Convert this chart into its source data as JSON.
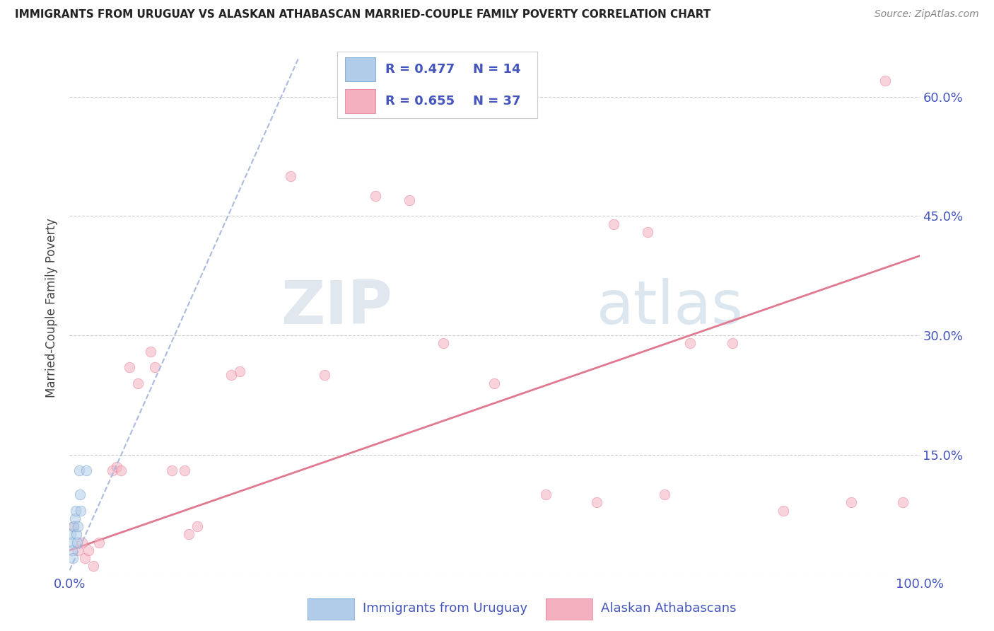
{
  "title": "IMMIGRANTS FROM URUGUAY VS ALASKAN ATHABASCAN MARRIED-COUPLE FAMILY POVERTY CORRELATION CHART",
  "source": "Source: ZipAtlas.com",
  "ylabel": "Married-Couple Family Poverty",
  "xlim": [
    0,
    1.0
  ],
  "ylim": [
    0,
    0.67
  ],
  "yticks": [
    0.0,
    0.15,
    0.3,
    0.45,
    0.6
  ],
  "ytick_labels_right": [
    "",
    "15.0%",
    "30.0%",
    "45.0%",
    "60.0%"
  ],
  "xtick_left_label": "0.0%",
  "xtick_right_label": "100.0%",
  "watermark_zip": "ZIP",
  "watermark_atlas": "atlas",
  "legend_r1": "R = 0.477",
  "legend_n1": "N = 14",
  "legend_r2": "R = 0.655",
  "legend_n2": "N = 37",
  "blue_scatter_x": [
    0.001,
    0.002,
    0.003,
    0.004,
    0.005,
    0.006,
    0.007,
    0.008,
    0.009,
    0.01,
    0.011,
    0.012,
    0.013,
    0.02
  ],
  "blue_scatter_y": [
    0.05,
    0.04,
    0.03,
    0.02,
    0.06,
    0.07,
    0.08,
    0.05,
    0.04,
    0.06,
    0.13,
    0.1,
    0.08,
    0.13
  ],
  "blue_trend_x": [
    0.0,
    0.27
  ],
  "blue_trend_y": [
    0.005,
    0.65
  ],
  "pink_scatter_x": [
    0.005,
    0.01,
    0.015,
    0.018,
    0.022,
    0.028,
    0.035,
    0.05,
    0.055,
    0.06,
    0.07,
    0.08,
    0.095,
    0.1,
    0.12,
    0.135,
    0.14,
    0.15,
    0.19,
    0.2,
    0.26,
    0.3,
    0.36,
    0.4,
    0.44,
    0.5,
    0.56,
    0.62,
    0.64,
    0.68,
    0.7,
    0.73,
    0.78,
    0.84,
    0.92,
    0.96,
    0.98
  ],
  "pink_scatter_y": [
    0.06,
    0.03,
    0.04,
    0.02,
    0.03,
    0.01,
    0.04,
    0.13,
    0.135,
    0.13,
    0.26,
    0.24,
    0.28,
    0.26,
    0.13,
    0.13,
    0.05,
    0.06,
    0.25,
    0.255,
    0.5,
    0.25,
    0.475,
    0.47,
    0.29,
    0.24,
    0.1,
    0.09,
    0.44,
    0.43,
    0.1,
    0.29,
    0.29,
    0.08,
    0.09,
    0.62,
    0.09
  ],
  "pink_trend_x": [
    0.0,
    1.0
  ],
  "pink_trend_y": [
    0.03,
    0.4
  ],
  "blue_color": "#b0cce8",
  "blue_edge": "#6699cc",
  "pink_color": "#f5b0c0",
  "pink_edge": "#e07890",
  "blue_line_color": "#aabbdd",
  "pink_line_color": "#e07890",
  "grid_color": "#cccccc",
  "title_color": "#222222",
  "axis_color": "#4455bb",
  "background_color": "#ffffff",
  "scatter_size": 110,
  "scatter_alpha": 0.55,
  "legend_box_color": "#ffffff",
  "legend_border_color": "#cccccc",
  "bottom_legend_blue_label": "Immigrants from Uruguay",
  "bottom_legend_pink_label": "Alaskan Athabascans"
}
